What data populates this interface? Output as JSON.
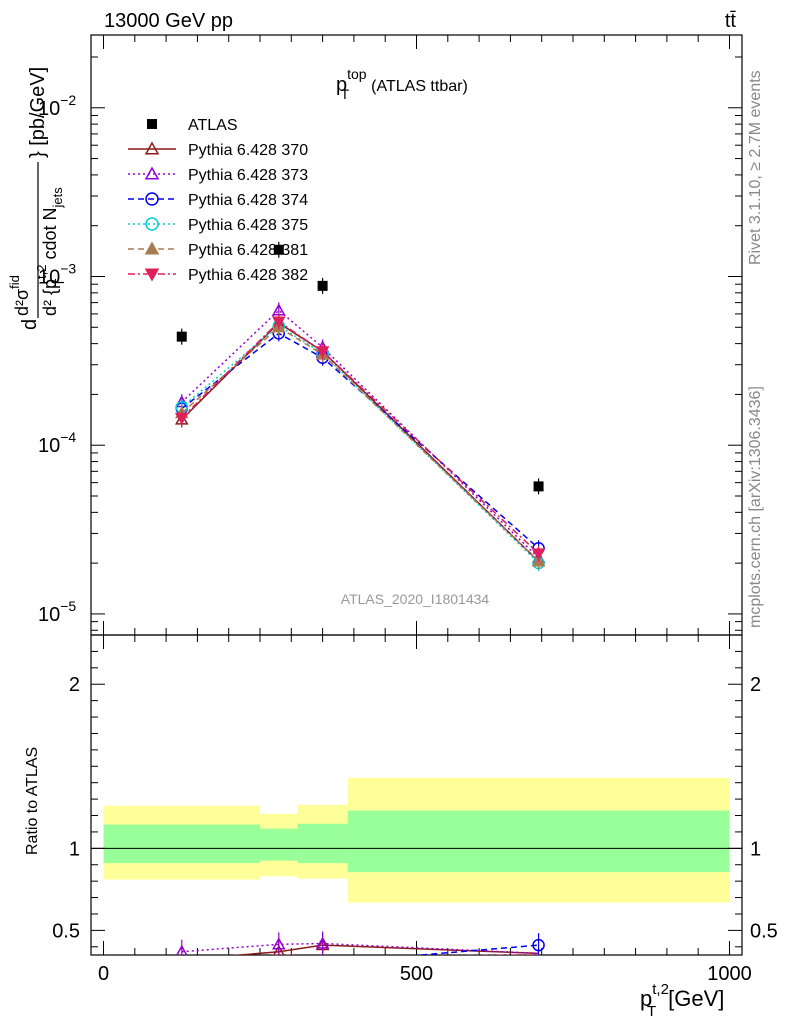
{
  "header": {
    "energy_label": "13000 GeV pp",
    "process_label": "tt̄"
  },
  "side_labels": {
    "rivet": "Rivet 3.1.10, ≥ 2.7M events",
    "mcplots": "mcplots.cern.ch [arXiv:1306.3436]"
  },
  "plot_title": {
    "main": "p",
    "sup": "top",
    "sub": "T",
    "suffix": "(ATLAS ttbar)"
  },
  "watermark": "ATLAS_2020_I1801434",
  "ylabel_main": {
    "d1": "d",
    "sigma_num": "d²σ",
    "sigma_sup": "fid",
    "d2": "d² {p",
    "sup2": "t,2",
    "sub2": "T",
    "tail": " cdot N",
    "sub3": "jets",
    "unit": "} [pb/GeV]"
  },
  "ylabel_ratio": "Ratio to ATLAS",
  "xlabel": {
    "main": "p",
    "sup": "t,2",
    "sub": "T",
    "unit": "[GeV]"
  },
  "chart_data": [
    {
      "type": "scatter",
      "title": "p_T^top (ATLAS ttbar)",
      "xlim": [
        -20,
        1020
      ],
      "ylim": [
        7.5e-06,
        0.027
      ],
      "yscale": "log",
      "x_ticks": [
        0,
        500,
        1000
      ],
      "y_ticks": [
        {
          "value": 1e-05,
          "label": "10",
          "exp": "−5"
        },
        {
          "value": 0.0001,
          "label": "10",
          "exp": "−4"
        },
        {
          "value": 0.001,
          "label": "10",
          "exp": "−3"
        },
        {
          "value": 0.01,
          "label": "10",
          "exp": "−2"
        }
      ],
      "legend_position": "top-left",
      "x": [
        125,
        280,
        350,
        695
      ],
      "series": [
        {
          "name": "ATLAS",
          "color": "#000000",
          "marker": "square",
          "line": "none",
          "values": [
            0.00044,
            0.00144,
            0.00088,
            5.7e-05
          ]
        },
        {
          "name": "Pythia 6.428 370",
          "color": "#8b1a1a",
          "marker": "triangle-open",
          "line": "solid",
          "values": [
            0.000142,
            0.00053,
            0.00036,
            2.05e-05
          ]
        },
        {
          "name": "Pythia 6.428 373",
          "color": "#9400d3",
          "marker": "triangle-open",
          "line": "dotted",
          "values": [
            0.00018,
            0.00063,
            0.00038,
            2.15e-05
          ]
        },
        {
          "name": "Pythia 6.428 374",
          "color": "#0000ee",
          "marker": "circle-open",
          "line": "dashed",
          "values": [
            0.000165,
            0.00046,
            0.00033,
            2.45e-05
          ]
        },
        {
          "name": "Pythia 6.428 375",
          "color": "#00ced1",
          "marker": "circle-open",
          "line": "dotted",
          "values": [
            0.000168,
            0.00051,
            0.00035,
            2e-05
          ]
        },
        {
          "name": "Pythia 6.428 381",
          "color": "#a87c50",
          "marker": "triangle-filled",
          "line": "dashed",
          "values": [
            0.000155,
            0.0005,
            0.000345,
            2.05e-05
          ]
        },
        {
          "name": "Pythia 6.428 382",
          "color": "#e0205a",
          "marker": "triangledown-filled",
          "line": "dashdot",
          "values": [
            0.000145,
            0.00054,
            0.00036,
            2.28e-05
          ]
        }
      ]
    },
    {
      "type": "line",
      "title": "",
      "ylabel": "Ratio to ATLAS",
      "xlim": [
        -20,
        1020
      ],
      "ylim": [
        0.35,
        2.3
      ],
      "x_ticks": [
        0,
        500,
        1000
      ],
      "y_ticks": [
        0.5,
        1,
        2
      ],
      "bands": {
        "bins": [
          [
            0,
            250
          ],
          [
            250,
            310
          ],
          [
            310,
            390
          ],
          [
            390,
            1000
          ]
        ],
        "yellow": [
          [
            0.81,
            1.26
          ],
          [
            0.83,
            1.21
          ],
          [
            0.815,
            1.265
          ],
          [
            0.67,
            1.43
          ]
        ],
        "green": [
          [
            0.91,
            1.145
          ],
          [
            0.925,
            1.12
          ],
          [
            0.91,
            1.15
          ],
          [
            0.855,
            1.23
          ]
        ]
      },
      "x": [
        125,
        280,
        350,
        695
      ],
      "series": [
        {
          "name": "Pythia 6.428 370",
          "values": [
            0.32,
            0.37,
            0.41,
            0.36
          ]
        },
        {
          "name": "Pythia 6.428 373",
          "values": [
            0.37,
            0.415,
            0.42,
            0.36
          ]
        },
        {
          "name": "Pythia 6.428 374",
          "values": [
            0.3,
            0.32,
            0.3,
            0.41
          ]
        },
        {
          "name": "Pythia 6.428 375",
          "values": [
            0.31,
            0.34,
            0.33,
            0.33
          ]
        },
        {
          "name": "Pythia 6.428 381",
          "values": [
            0.31,
            0.33,
            0.32,
            0.34
          ]
        },
        {
          "name": "Pythia 6.428 382",
          "values": [
            0.3,
            0.35,
            0.34,
            0.35
          ]
        }
      ]
    }
  ]
}
